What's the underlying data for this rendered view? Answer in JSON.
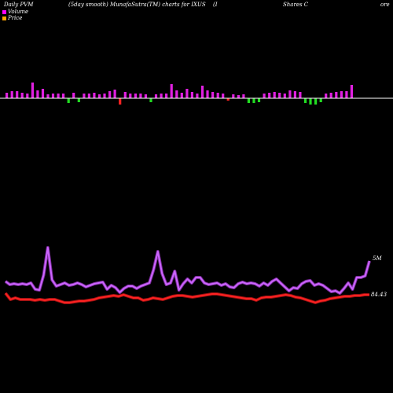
{
  "header": {
    "left": "Daily PVM",
    "center": "(5day smooth) MunafaSutra(TM) charts for IXUS",
    "bracket": "(I",
    "name": "Shares C",
    "right": "ore"
  },
  "legend": [
    {
      "label": "Volume",
      "color": "#ff00ff"
    },
    {
      "label": "Price",
      "color": "#ffa500"
    }
  ],
  "colors": {
    "background": "#000000",
    "volume_line": "#cc66ff",
    "price_line": "#ff2222",
    "bar_up": "#e020e0",
    "bar_down": "#22dd22",
    "bar_flat": "#ff2222"
  },
  "chart_data": {
    "type": "line",
    "title": "Daily PVM (5day smooth) MunafaSutra(TM) charts for IXUS",
    "annotations": [
      {
        "text": "5M",
        "series": "Volume"
      },
      {
        "text": "84.43",
        "series": "Price"
      }
    ],
    "bars": [
      {
        "v": 7,
        "c": "up"
      },
      {
        "v": 9,
        "c": "up"
      },
      {
        "v": 9,
        "c": "up"
      },
      {
        "v": 7,
        "c": "up"
      },
      {
        "v": 6,
        "c": "up"
      },
      {
        "v": 20,
        "c": "up"
      },
      {
        "v": 10,
        "c": "up"
      },
      {
        "v": 12,
        "c": "up"
      },
      {
        "v": 5,
        "c": "up"
      },
      {
        "v": 6,
        "c": "up"
      },
      {
        "v": 6,
        "c": "up"
      },
      {
        "v": 6,
        "c": "up"
      },
      {
        "v": -6,
        "c": "down"
      },
      {
        "v": 7,
        "c": "up"
      },
      {
        "v": -5,
        "c": "down"
      },
      {
        "v": 6,
        "c": "up"
      },
      {
        "v": 6,
        "c": "up"
      },
      {
        "v": 7,
        "c": "up"
      },
      {
        "v": 5,
        "c": "up"
      },
      {
        "v": 6,
        "c": "up"
      },
      {
        "v": 9,
        "c": "up"
      },
      {
        "v": 11,
        "c": "up"
      },
      {
        "v": -8,
        "c": "flat"
      },
      {
        "v": 8,
        "c": "up"
      },
      {
        "v": 6,
        "c": "up"
      },
      {
        "v": 6,
        "c": "up"
      },
      {
        "v": 6,
        "c": "up"
      },
      {
        "v": 5,
        "c": "up"
      },
      {
        "v": -5,
        "c": "down"
      },
      {
        "v": 5,
        "c": "up"
      },
      {
        "v": 6,
        "c": "up"
      },
      {
        "v": 6,
        "c": "up"
      },
      {
        "v": 18,
        "c": "up"
      },
      {
        "v": 10,
        "c": "up"
      },
      {
        "v": 7,
        "c": "up"
      },
      {
        "v": 12,
        "c": "up"
      },
      {
        "v": 8,
        "c": "up"
      },
      {
        "v": 6,
        "c": "up"
      },
      {
        "v": 16,
        "c": "up"
      },
      {
        "v": 10,
        "c": "up"
      },
      {
        "v": 8,
        "c": "up"
      },
      {
        "v": 7,
        "c": "up"
      },
      {
        "v": 6,
        "c": "up"
      },
      {
        "v": -3,
        "c": "flat"
      },
      {
        "v": 5,
        "c": "up"
      },
      {
        "v": 4,
        "c": "up"
      },
      {
        "v": 5,
        "c": "up"
      },
      {
        "v": -6,
        "c": "down"
      },
      {
        "v": -6,
        "c": "down"
      },
      {
        "v": -5,
        "c": "down"
      },
      {
        "v": 6,
        "c": "up"
      },
      {
        "v": 7,
        "c": "up"
      },
      {
        "v": 8,
        "c": "up"
      },
      {
        "v": 7,
        "c": "up"
      },
      {
        "v": 6,
        "c": "up"
      },
      {
        "v": 10,
        "c": "up"
      },
      {
        "v": 9,
        "c": "up"
      },
      {
        "v": 8,
        "c": "up"
      },
      {
        "v": -6,
        "c": "down"
      },
      {
        "v": -8,
        "c": "down"
      },
      {
        "v": -8,
        "c": "down"
      },
      {
        "v": -5,
        "c": "down"
      },
      {
        "v": 6,
        "c": "up"
      },
      {
        "v": 7,
        "c": "up"
      },
      {
        "v": 8,
        "c": "up"
      },
      {
        "v": 9,
        "c": "up"
      },
      {
        "v": 9,
        "c": "up"
      },
      {
        "v": 17,
        "c": "up"
      }
    ],
    "series": [
      {
        "name": "Volume",
        "values": [
          40,
          36,
          37,
          36,
          37,
          36,
          38,
          30,
          29,
          48,
          83,
          42,
          34,
          36,
          38,
          35,
          36,
          38,
          36,
          33,
          35,
          37,
          38,
          39,
          30,
          35,
          32,
          26,
          31,
          34,
          34,
          31,
          34,
          36,
          38,
          55,
          78,
          50,
          36,
          38,
          53,
          29,
          37,
          43,
          38,
          45,
          45,
          38,
          36,
          37,
          38,
          35,
          37,
          33,
          32,
          37,
          39,
          37,
          38,
          37,
          34,
          38,
          35,
          40,
          43,
          38,
          33,
          28,
          32,
          31,
          37,
          40,
          41,
          35,
          37,
          35,
          31,
          27,
          28,
          25,
          31,
          38,
          30,
          45,
          45,
          47,
          66
        ]
      },
      {
        "name": "Price",
        "values": [
          28,
          20,
          22,
          20,
          20,
          20,
          19,
          20,
          19,
          20,
          20,
          18,
          16,
          16,
          17,
          18,
          18,
          19,
          20,
          22,
          23,
          24,
          25,
          24,
          26,
          24,
          22,
          22,
          19,
          20,
          22,
          21,
          20,
          22,
          24,
          25,
          25,
          24,
          23,
          24,
          25,
          26,
          27,
          27,
          26,
          25,
          24,
          23,
          22,
          21,
          21,
          19,
          22,
          23,
          23,
          24,
          25,
          26,
          25,
          23,
          22,
          20,
          18,
          16,
          18,
          19,
          21,
          22,
          23,
          24,
          24,
          25,
          25,
          26,
          26
        ]
      }
    ]
  }
}
